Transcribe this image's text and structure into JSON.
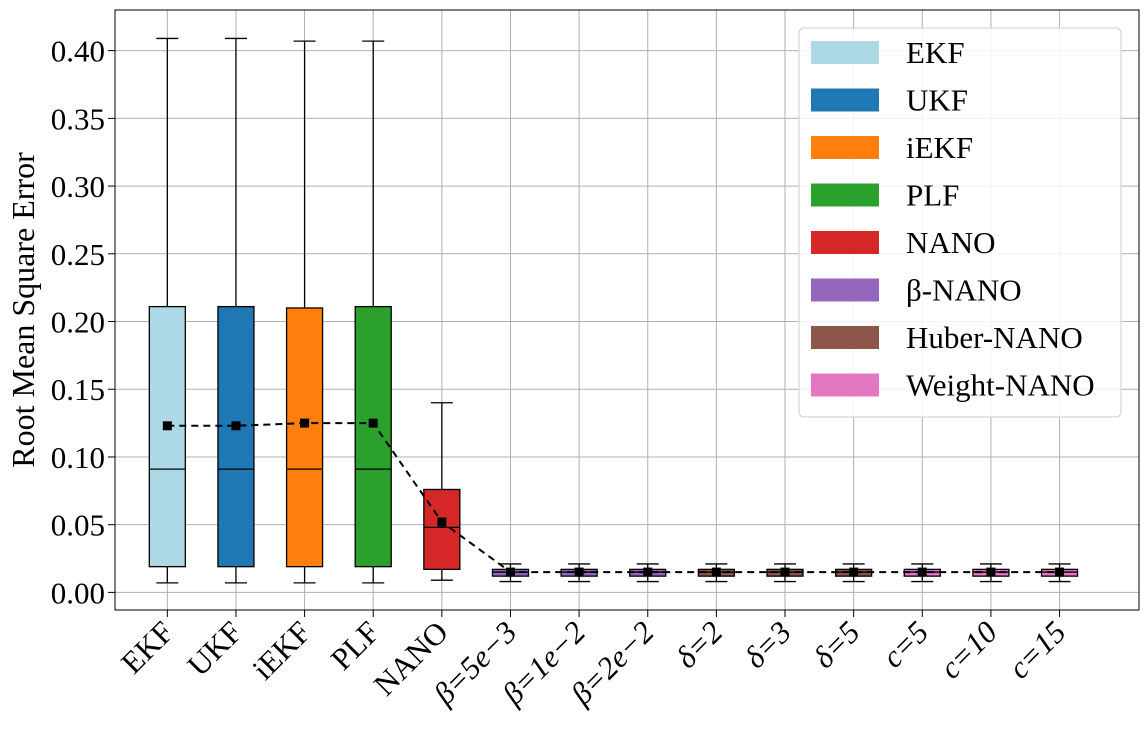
{
  "chart_data": {
    "type": "box",
    "title": "",
    "xlabel": "",
    "ylabel": "Root Mean Square Error",
    "ylim": [
      -0.013,
      0.43
    ],
    "yticks": [
      0.0,
      0.05,
      0.1,
      0.15,
      0.2,
      0.25,
      0.3,
      0.35,
      0.4
    ],
    "ytick_labels": [
      "0.00",
      "0.05",
      "0.10",
      "0.15",
      "0.20",
      "0.25",
      "0.30",
      "0.35",
      "0.40"
    ],
    "grid": true,
    "legend_position": "top-right",
    "categories": [
      "EKF",
      "UKF",
      "iEKF",
      "PLF",
      "NANO",
      "β=5e−3",
      "β=1e−2",
      "β=2e−2",
      "δ=2",
      "δ=3",
      "δ=5",
      "c=5",
      "c=10",
      "c=15"
    ],
    "boxes": [
      {
        "whisker_low": 0.007,
        "q1": 0.019,
        "median": 0.091,
        "q3": 0.211,
        "whisker_high": 0.409,
        "mean": 0.123,
        "color": "#add8e6"
      },
      {
        "whisker_low": 0.007,
        "q1": 0.019,
        "median": 0.091,
        "q3": 0.211,
        "whisker_high": 0.409,
        "mean": 0.123,
        "color": "#1f77b4"
      },
      {
        "whisker_low": 0.007,
        "q1": 0.019,
        "median": 0.091,
        "q3": 0.21,
        "whisker_high": 0.407,
        "mean": 0.125,
        "color": "#ff7f0e"
      },
      {
        "whisker_low": 0.007,
        "q1": 0.019,
        "median": 0.091,
        "q3": 0.211,
        "whisker_high": 0.407,
        "mean": 0.125,
        "color": "#2ca02c"
      },
      {
        "whisker_low": 0.009,
        "q1": 0.017,
        "median": 0.048,
        "q3": 0.076,
        "whisker_high": 0.14,
        "mean": 0.052,
        "color": "#d62728"
      },
      {
        "whisker_low": 0.008,
        "q1": 0.012,
        "median": 0.015,
        "q3": 0.017,
        "whisker_high": 0.021,
        "mean": 0.015,
        "color": "#9467bd"
      },
      {
        "whisker_low": 0.008,
        "q1": 0.012,
        "median": 0.015,
        "q3": 0.017,
        "whisker_high": 0.021,
        "mean": 0.015,
        "color": "#9467bd"
      },
      {
        "whisker_low": 0.008,
        "q1": 0.012,
        "median": 0.015,
        "q3": 0.017,
        "whisker_high": 0.021,
        "mean": 0.015,
        "color": "#9467bd"
      },
      {
        "whisker_low": 0.008,
        "q1": 0.012,
        "median": 0.015,
        "q3": 0.017,
        "whisker_high": 0.021,
        "mean": 0.015,
        "color": "#8c564b"
      },
      {
        "whisker_low": 0.008,
        "q1": 0.012,
        "median": 0.015,
        "q3": 0.017,
        "whisker_high": 0.021,
        "mean": 0.015,
        "color": "#8c564b"
      },
      {
        "whisker_low": 0.008,
        "q1": 0.012,
        "median": 0.015,
        "q3": 0.017,
        "whisker_high": 0.021,
        "mean": 0.015,
        "color": "#8c564b"
      },
      {
        "whisker_low": 0.008,
        "q1": 0.012,
        "median": 0.015,
        "q3": 0.017,
        "whisker_high": 0.021,
        "mean": 0.015,
        "color": "#e377c2"
      },
      {
        "whisker_low": 0.008,
        "q1": 0.012,
        "median": 0.015,
        "q3": 0.017,
        "whisker_high": 0.021,
        "mean": 0.015,
        "color": "#e377c2"
      },
      {
        "whisker_low": 0.008,
        "q1": 0.012,
        "median": 0.015,
        "q3": 0.017,
        "whisker_high": 0.021,
        "mean": 0.015,
        "color": "#e377c2"
      }
    ],
    "mean_line": {
      "style": "dashed",
      "marker": "square",
      "color": "#000000"
    },
    "legend": [
      {
        "label": "EKF",
        "color": "#add8e6"
      },
      {
        "label": "UKF",
        "color": "#1f77b4"
      },
      {
        "label": "iEKF",
        "color": "#ff7f0e"
      },
      {
        "label": "PLF",
        "color": "#2ca02c"
      },
      {
        "label": "NANO",
        "color": "#d62728"
      },
      {
        "label": "β-NANO",
        "color": "#9467bd"
      },
      {
        "label": "Huber-NANO",
        "color": "#8c564b"
      },
      {
        "label": "Weight-NANO",
        "color": "#e377c2"
      }
    ]
  }
}
